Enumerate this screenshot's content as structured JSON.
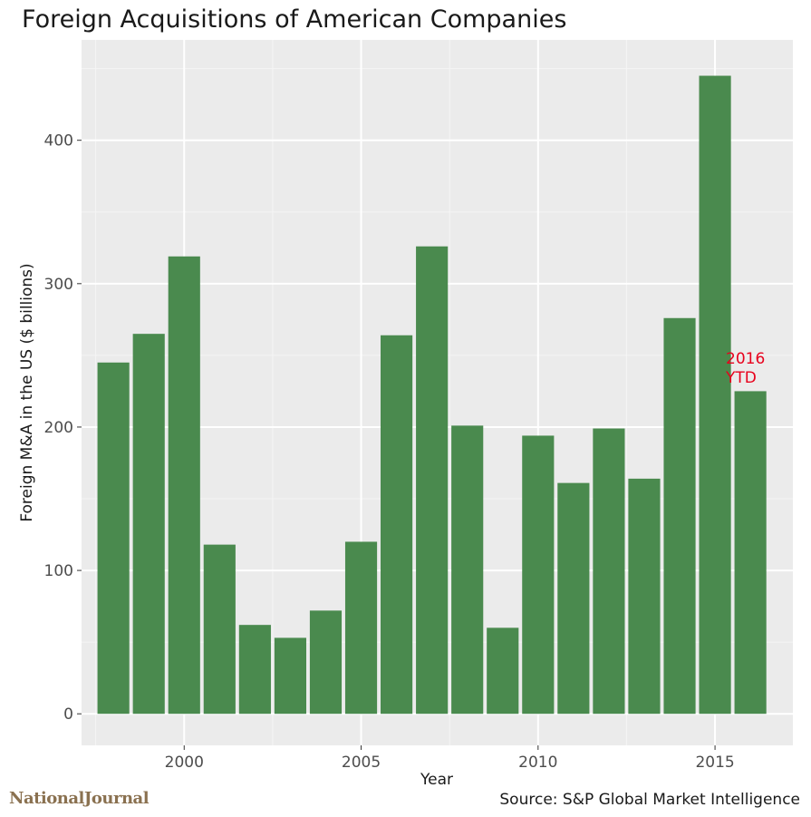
{
  "chart_data": {
    "type": "bar",
    "title": "Foreign Acquisitions of American Companies",
    "xlabel": "Year",
    "ylabel": "Foreign M&A in the US ($ billions)",
    "x": [
      1998,
      1999,
      2000,
      2001,
      2002,
      2003,
      2004,
      2005,
      2006,
      2007,
      2008,
      2009,
      2010,
      2011,
      2012,
      2013,
      2014,
      2015,
      2016
    ],
    "values": [
      245,
      265,
      319,
      118,
      62,
      53,
      72,
      120,
      264,
      326,
      201,
      60,
      194,
      161,
      199,
      164,
      276,
      445,
      225
    ],
    "xlim": [
      1997.1,
      2017.2
    ],
    "ylim": [
      -22,
      470
    ],
    "xticks": [
      2000,
      2005,
      2010,
      2015
    ],
    "yticks": [
      0,
      100,
      200,
      300,
      400
    ],
    "xtick_labels": [
      "2000",
      "2005",
      "2010",
      "2015"
    ],
    "ytick_labels": [
      "0",
      "100",
      "200",
      "300",
      "400"
    ],
    "grid": true,
    "bar_color": "#4a8a4e",
    "panel_color": "#ebebeb",
    "annotation": {
      "lines": [
        "2016",
        "YTD"
      ],
      "color": "#e8001c"
    }
  },
  "source": "Source: S&P Global Market Intelligence",
  "logo_text": "NationalJournal"
}
